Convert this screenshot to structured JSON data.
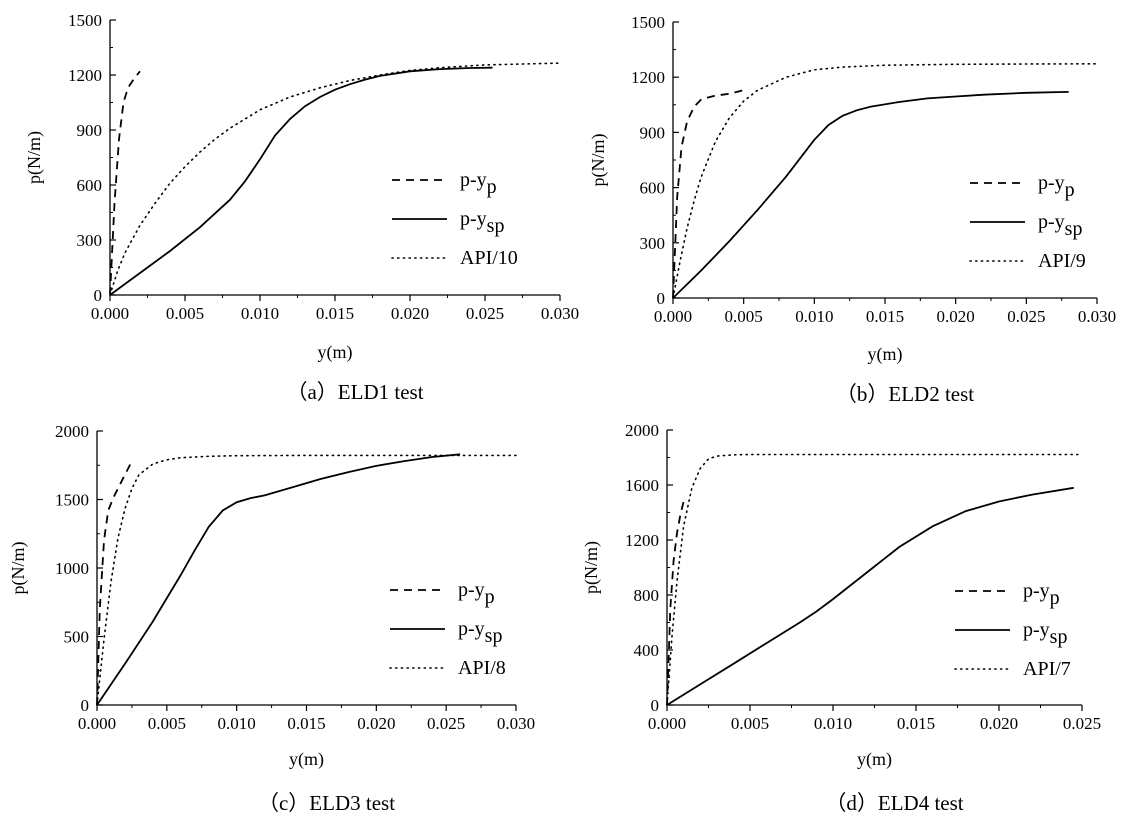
{
  "chart_data": [
    {
      "type": "line",
      "caption": "（a）ELD1 test",
      "xlabel": "y(m)",
      "ylabel": "p(N/m)",
      "xlim": [
        0,
        0.03
      ],
      "ylim": [
        0,
        1500
      ],
      "xticks": [
        "0.000",
        "0.005",
        "0.010",
        "0.015",
        "0.020",
        "0.025",
        "0.030"
      ],
      "yticks": [
        "0",
        "300",
        "600",
        "900",
        "1200",
        "1500"
      ],
      "legend_position": "center-right",
      "grid": false,
      "series": [
        {
          "name": "p-y",
          "subscript": "p",
          "style": "dashed",
          "x": [
            0,
            0.0003,
            0.0006,
            0.0009,
            0.0012,
            0.0016,
            0.002
          ],
          "y": [
            0,
            500,
            850,
            1050,
            1130,
            1180,
            1220
          ]
        },
        {
          "name": "p-y",
          "subscript": "sp",
          "style": "solid",
          "x": [
            0,
            0.002,
            0.004,
            0.006,
            0.008,
            0.009,
            0.01,
            0.011,
            0.012,
            0.013,
            0.014,
            0.015,
            0.016,
            0.017,
            0.018,
            0.02,
            0.022,
            0.024,
            0.0255
          ],
          "y": [
            0,
            120,
            240,
            370,
            520,
            620,
            740,
            870,
            960,
            1030,
            1080,
            1120,
            1150,
            1175,
            1195,
            1220,
            1232,
            1238,
            1240
          ]
        },
        {
          "name": "API/10",
          "style": "dotted",
          "x": [
            0,
            0.0005,
            0.001,
            0.002,
            0.003,
            0.004,
            0.005,
            0.006,
            0.007,
            0.008,
            0.009,
            0.01,
            0.012,
            0.014,
            0.016,
            0.018,
            0.02,
            0.022,
            0.025,
            0.03
          ],
          "y": [
            0,
            130,
            230,
            380,
            500,
            610,
            700,
            780,
            850,
            910,
            960,
            1010,
            1080,
            1130,
            1170,
            1200,
            1225,
            1240,
            1255,
            1265
          ]
        }
      ]
    },
    {
      "type": "line",
      "caption": "（b）ELD2 test",
      "xlabel": "y(m)",
      "ylabel": "p(N/m)",
      "xlim": [
        0,
        0.03
      ],
      "ylim": [
        0,
        1500
      ],
      "xticks": [
        "0.000",
        "0.005",
        "0.010",
        "0.015",
        "0.020",
        "0.025",
        "0.030"
      ],
      "yticks": [
        "0",
        "300",
        "600",
        "900",
        "1200",
        "1500"
      ],
      "legend_position": "center-right",
      "grid": false,
      "series": [
        {
          "name": "p-y",
          "subscript": "p",
          "style": "dashed",
          "x": [
            0,
            0.0003,
            0.0006,
            0.001,
            0.0015,
            0.002,
            0.003,
            0.004,
            0.005
          ],
          "y": [
            0,
            550,
            820,
            960,
            1040,
            1080,
            1100,
            1110,
            1130
          ]
        },
        {
          "name": "p-y",
          "subscript": "sp",
          "style": "solid",
          "x": [
            0,
            0.002,
            0.004,
            0.006,
            0.008,
            0.009,
            0.01,
            0.011,
            0.012,
            0.013,
            0.014,
            0.016,
            0.018,
            0.02,
            0.022,
            0.025,
            0.028
          ],
          "y": [
            0,
            150,
            310,
            480,
            660,
            760,
            860,
            940,
            990,
            1020,
            1040,
            1065,
            1085,
            1095,
            1105,
            1115,
            1120
          ]
        },
        {
          "name": "API/9",
          "style": "dotted",
          "x": [
            0,
            0.0005,
            0.001,
            0.0015,
            0.002,
            0.003,
            0.004,
            0.005,
            0.006,
            0.008,
            0.01,
            0.012,
            0.015,
            0.02,
            0.025,
            0.03
          ],
          "y": [
            0,
            200,
            380,
            530,
            660,
            850,
            980,
            1070,
            1130,
            1200,
            1240,
            1255,
            1265,
            1270,
            1272,
            1273
          ]
        }
      ]
    },
    {
      "type": "line",
      "caption": "（c）ELD3 test",
      "xlabel": "y(m)",
      "ylabel": "p(N/m)",
      "xlim": [
        0,
        0.03
      ],
      "ylim": [
        0,
        2000
      ],
      "xticks": [
        "0.000",
        "0.005",
        "0.010",
        "0.015",
        "0.020",
        "0.025",
        "0.030"
      ],
      "yticks": [
        "0",
        "500",
        "1000",
        "1500",
        "2000"
      ],
      "legend_position": "center-right",
      "grid": false,
      "series": [
        {
          "name": "p-y",
          "subscript": "p",
          "style": "dashed",
          "x": [
            0,
            0.0002,
            0.0005,
            0.0008,
            0.0012,
            0.0016,
            0.002,
            0.0025
          ],
          "y": [
            0,
            700,
            1200,
            1420,
            1520,
            1600,
            1680,
            1780
          ]
        },
        {
          "name": "p-y",
          "subscript": "sp",
          "style": "solid",
          "x": [
            0,
            0.002,
            0.004,
            0.006,
            0.007,
            0.008,
            0.009,
            0.01,
            0.011,
            0.012,
            0.014,
            0.016,
            0.018,
            0.02,
            0.022,
            0.024,
            0.026
          ],
          "y": [
            0,
            300,
            610,
            950,
            1130,
            1300,
            1420,
            1480,
            1510,
            1530,
            1590,
            1650,
            1700,
            1745,
            1780,
            1810,
            1830
          ]
        },
        {
          "name": "API/8",
          "style": "dotted",
          "x": [
            0,
            0.0005,
            0.001,
            0.0015,
            0.002,
            0.0025,
            0.003,
            0.004,
            0.005,
            0.006,
            0.008,
            0.01,
            0.015,
            0.02,
            0.025,
            0.03
          ],
          "y": [
            0,
            480,
            900,
            1220,
            1430,
            1580,
            1680,
            1760,
            1790,
            1805,
            1815,
            1820,
            1822,
            1822,
            1822,
            1822
          ]
        }
      ]
    },
    {
      "type": "line",
      "caption": "（d）ELD4 test",
      "xlabel": "y(m)",
      "ylabel": "p(N/m)",
      "xlim": [
        0,
        0.025
      ],
      "ylim": [
        0,
        2000
      ],
      "xticks": [
        "0.000",
        "0.005",
        "0.010",
        "0.015",
        "0.020",
        "0.025"
      ],
      "yticks": [
        "0",
        "400",
        "800",
        "1200",
        "1600",
        "2000"
      ],
      "legend_position": "center-right",
      "grid": false,
      "series": [
        {
          "name": "p-y",
          "subscript": "p",
          "style": "dashed",
          "x": [
            0,
            0.0001,
            0.0002,
            0.0004,
            0.0006,
            0.0008,
            0.001
          ],
          "y": [
            0,
            350,
            700,
            1050,
            1250,
            1380,
            1480
          ]
        },
        {
          "name": "p-y",
          "subscript": "sp",
          "style": "solid",
          "x": [
            0,
            0.002,
            0.004,
            0.006,
            0.008,
            0.009,
            0.01,
            0.012,
            0.014,
            0.016,
            0.018,
            0.02,
            0.022,
            0.0245
          ],
          "y": [
            0,
            150,
            300,
            450,
            600,
            680,
            770,
            960,
            1150,
            1300,
            1410,
            1480,
            1530,
            1580
          ]
        },
        {
          "name": "API/7",
          "style": "dotted",
          "x": [
            0,
            0.0003,
            0.0006,
            0.001,
            0.0015,
            0.002,
            0.0025,
            0.003,
            0.004,
            0.005,
            0.01,
            0.015,
            0.02,
            0.025
          ],
          "y": [
            0,
            500,
            900,
            1300,
            1580,
            1720,
            1790,
            1810,
            1820,
            1822,
            1822,
            1822,
            1822,
            1822
          ]
        }
      ]
    }
  ]
}
